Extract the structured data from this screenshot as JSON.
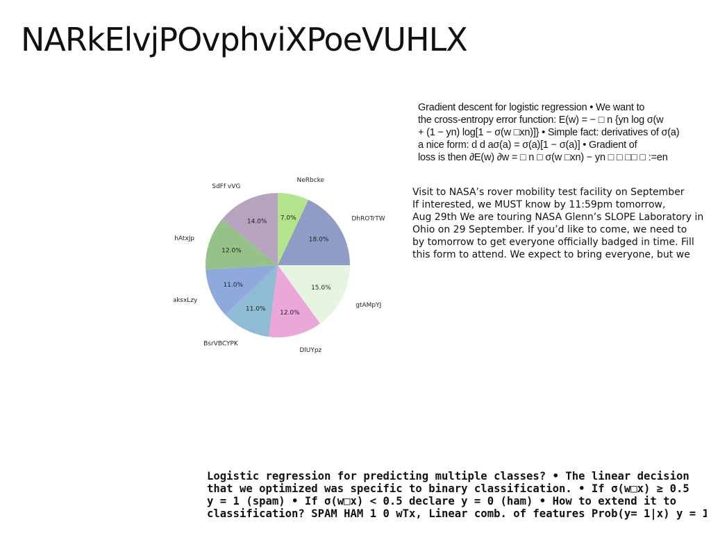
{
  "page": {
    "title": "NARkElvjPOvphviXPoeVUHLX"
  },
  "chart_data": {
    "type": "pie",
    "title": "",
    "slices": [
      {
        "label": "NeRbcke",
        "value": 7.0,
        "pct_label": "7.0%",
        "color": "#b3e38a"
      },
      {
        "label": "DhROTrTW",
        "value": 18.0,
        "pct_label": "18.0%",
        "color": "#8e9cc6"
      },
      {
        "label": "gtAMpYJ",
        "value": 15.0,
        "pct_label": "15.0%",
        "color": "#e5f5e0"
      },
      {
        "label": "DlUYpz",
        "value": 12.0,
        "pct_label": "12.0%",
        "color": "#eba7d8"
      },
      {
        "label": "BsrVBCYPK",
        "value": 11.0,
        "pct_label": "11.0%",
        "color": "#8fbcd4"
      },
      {
        "label": "iaksxLzy",
        "value": 11.0,
        "pct_label": "11.0%",
        "color": "#8ea9dc"
      },
      {
        "label": "hAtxJp",
        "value": 12.0,
        "pct_label": "12.0%",
        "color": "#96c28a"
      },
      {
        "label": "SdFf vVG",
        "value": 14.0,
        "pct_label": "14.0%",
        "color": "#b8a3bf"
      }
    ],
    "start_angle_deg": 90,
    "direction": "clockwise"
  },
  "text_blocks": {
    "gradient": [
      "Gradient descent for logistic regression • We want to",
      "the cross-entropy error function: E(w) = − □ n {yn log σ(w",
      "+ (1 − yn) log[1 − σ(w □xn)]} • Simple fact: derivatives of σ(a)",
      "a nice form: d d aσ(a) = σ(a)[1 − σ(a)] • Gradient of",
      "loss is then ∂E(w) ∂w = □ n □ σ(w □xn) − yn □ □ □□ □ :=en"
    ],
    "nasa": [
      "Visit to NASA’s rover mobility test facility on September",
      "If interested, we MUST know by 11:59pm tomorrow,",
      "Aug 29th We are touring NASA Glenn’s SLOPE Laboratory in",
      "Ohio on 29 September. If you’d like to come, we need to",
      "by tomorrow to get everyone officially badged in time. Fill",
      "this form to attend. We expect to bring everyone, but we"
    ],
    "logistic": [
      "Logistic regression for predicting multiple classes? • The linear decision",
      "that we optimized was specific to binary classification. • If σ(w□x) ≥ 0.5",
      "y = 1 (spam) • If σ(w□x) < 0.5 declare y = 0 (ham) • How to extend it to",
      "classification? SPAM HAM 1 0 wTx, Linear comb. of features Prob(y= 1|x) y = 1"
    ]
  }
}
